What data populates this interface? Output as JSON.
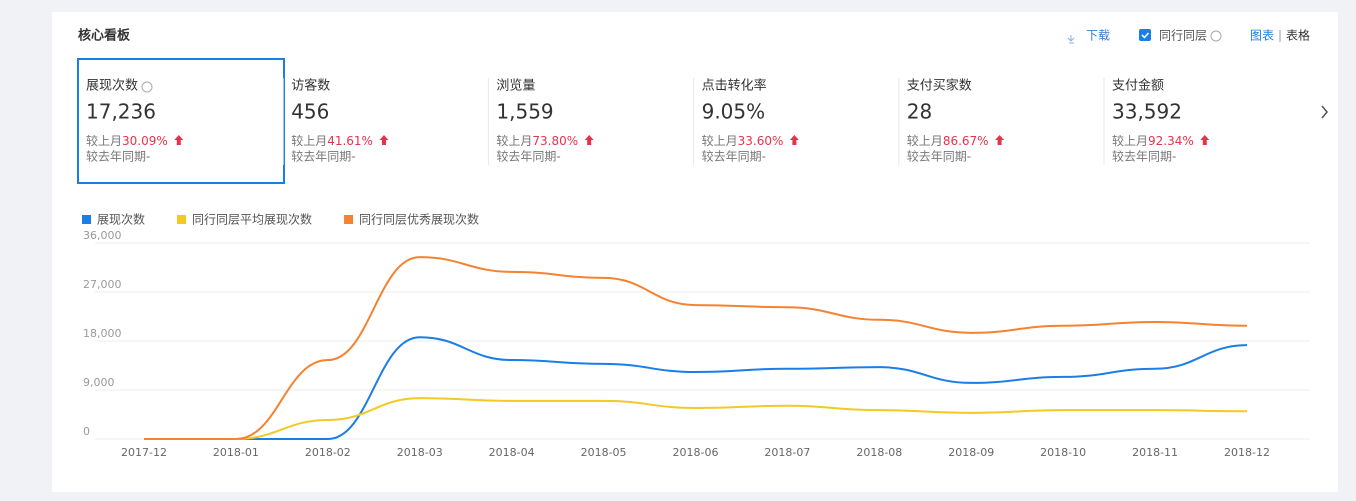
{
  "header": {
    "title": "核心看板",
    "download": "下载",
    "peer_toggle": "同行同层",
    "tabs": [
      "图表",
      "表格"
    ]
  },
  "metrics": [
    {
      "label": "展现次数",
      "value": "17,236",
      "compare_label": "较上月",
      "change": "30.09%",
      "yoy": "较去年同期-"
    },
    {
      "label": "访客数",
      "value": "456",
      "compare_label": "较上月",
      "change": "41.61%",
      "yoy": "较去年同期-"
    },
    {
      "label": "浏览量",
      "value": "1,559",
      "compare_label": "较上月",
      "change": "73.80%",
      "yoy": "较去年同期-"
    },
    {
      "label": "点击转化率",
      "value": "9.05%",
      "compare_label": "较上月",
      "change": "33.60%",
      "yoy": "较去年同期-"
    },
    {
      "label": "支付买家数",
      "value": "28",
      "compare_label": "较上月",
      "change": "86.67%",
      "yoy": "较去年同期-"
    },
    {
      "label": "支付金额",
      "value": "33,592",
      "compare_label": "较上月",
      "change": "92.34%",
      "yoy": "较去年同期-"
    }
  ],
  "chart_data": {
    "type": "line",
    "categories": [
      "2017-12",
      "2018-01",
      "2018-02",
      "2018-03",
      "2018-04",
      "2018-05",
      "2018-06",
      "2018-07",
      "2018-08",
      "2018-09",
      "2018-10",
      "2018-11",
      "2018-12"
    ],
    "series": [
      {
        "name": "展现次数",
        "color": "#1a7ee6",
        "values": [
          0,
          0,
          0,
          18700,
          14500,
          13800,
          12300,
          12900,
          13200,
          10300,
          11400,
          12900,
          17236
        ]
      },
      {
        "name": "同行同层平均展现次数",
        "color": "#f2c925",
        "values": [
          0,
          0,
          3500,
          7500,
          7000,
          7000,
          5700,
          6100,
          5300,
          4800,
          5300,
          5300,
          5100
        ]
      },
      {
        "name": "同行同层优秀展现次数",
        "color": "#f58230",
        "values": [
          0,
          0,
          14500,
          33400,
          30700,
          29600,
          24600,
          24200,
          21900,
          19500,
          20800,
          21500,
          20800
        ]
      }
    ],
    "ylim": [
      0,
      36000
    ],
    "yticks": [
      0,
      {
        "value": 9000,
        "label": "9,000"
      },
      {
        "value": 18000,
        "label": "18,000"
      },
      {
        "value": 27000,
        "label": "27,000"
      },
      {
        "value": 36000,
        "label": "36,000"
      }
    ],
    "grid": true,
    "legend": "top-left"
  }
}
